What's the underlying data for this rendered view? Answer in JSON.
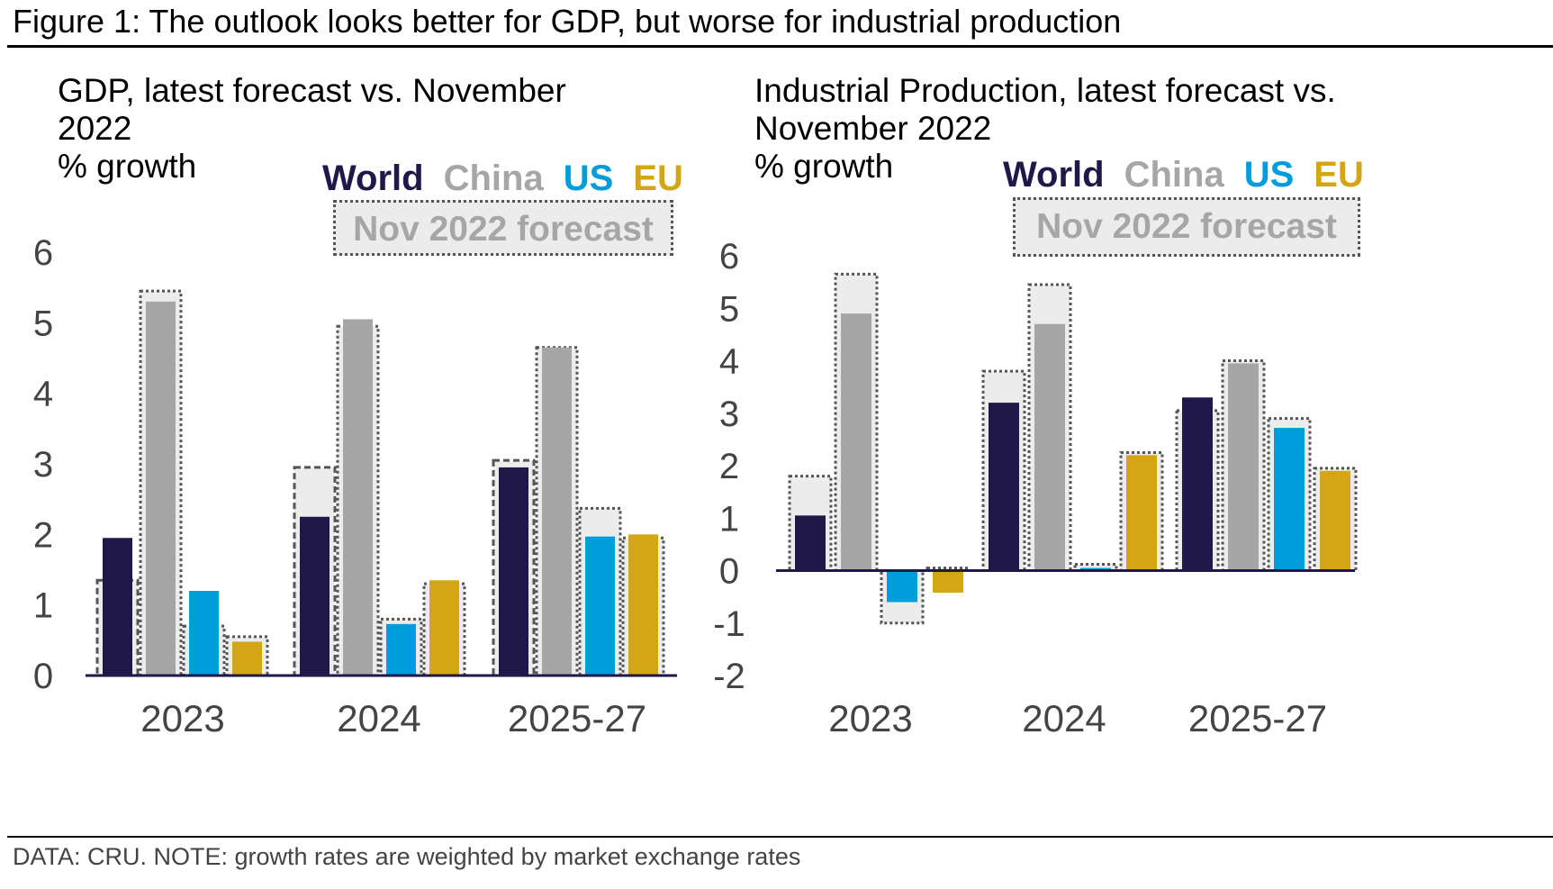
{
  "figure_title": "Figure 1: The outlook looks better for GDP, but worse for industrial production",
  "footnote": "DATA: CRU. NOTE: growth rates are weighted by market exchange rates",
  "legend": {
    "items": [
      {
        "label": "World",
        "color": "#201848"
      },
      {
        "label": "China",
        "color": "#a6a6a6"
      },
      {
        "label": "US",
        "color": "#009ddc"
      },
      {
        "label": "EU",
        "color": "#d4a514"
      }
    ],
    "nov_label": "Nov 2022 forecast"
  },
  "chart_data": [
    {
      "type": "bar",
      "title": "GDP, latest forecast vs. November 2022",
      "title_lines": [
        "GDP, latest forecast vs. November",
        "2022",
        "% growth"
      ],
      "ylabel": "% growth",
      "xlabel": "",
      "categories": [
        "2023",
        "2024",
        "2025-27"
      ],
      "ylim": [
        0,
        6
      ],
      "yticks": [
        "0",
        "1",
        "2",
        "3",
        "4",
        "5",
        "6"
      ],
      "grid": false,
      "legend_placement": "top-right",
      "series": [
        {
          "name": "World",
          "color": "#201848",
          "values": [
            1.95,
            2.25,
            2.95
          ],
          "nov_2022": [
            1.35,
            2.95,
            3.05
          ]
        },
        {
          "name": "China",
          "color": "#a6a6a6",
          "values": [
            5.3,
            5.05,
            4.65
          ],
          "nov_2022": [
            5.45,
            4.95,
            4.65
          ]
        },
        {
          "name": "US",
          "color": "#009ddc",
          "values": [
            1.2,
            0.73,
            1.97
          ],
          "nov_2022": [
            0.7,
            0.8,
            2.37
          ]
        },
        {
          "name": "EU",
          "color": "#d4a514",
          "values": [
            0.48,
            1.35,
            2.0
          ],
          "nov_2022": [
            0.55,
            1.3,
            1.95
          ]
        }
      ]
    },
    {
      "type": "bar",
      "title": "Industrial Production, latest forecast vs. November 2022",
      "title_lines": [
        "Industrial Production, latest forecast vs.",
        "November 2022",
        "% growth"
      ],
      "ylabel": "% growth",
      "xlabel": "",
      "categories": [
        "2023",
        "2024",
        "2025-27"
      ],
      "ylim": [
        -2,
        6
      ],
      "yticks": [
        "-2",
        "-1",
        "0",
        "1",
        "2",
        "3",
        "4",
        "5",
        "6"
      ],
      "grid": false,
      "legend_placement": "top-right",
      "series": [
        {
          "name": "World",
          "color": "#201848",
          "values": [
            1.05,
            3.2,
            3.3
          ],
          "nov_2022": [
            1.8,
            3.8,
            3.05
          ]
        },
        {
          "name": "China",
          "color": "#a6a6a6",
          "values": [
            4.9,
            4.7,
            3.95
          ],
          "nov_2022": [
            5.65,
            5.45,
            4.0
          ]
        },
        {
          "name": "US",
          "color": "#009ddc",
          "values": [
            -0.6,
            0.05,
            2.72
          ],
          "nov_2022": [
            -1.0,
            0.12,
            2.9
          ]
        },
        {
          "name": "EU",
          "color": "#d4a514",
          "values": [
            -0.42,
            2.2,
            1.9
          ],
          "nov_2022": [
            0.05,
            2.25,
            1.95
          ]
        }
      ]
    }
  ]
}
